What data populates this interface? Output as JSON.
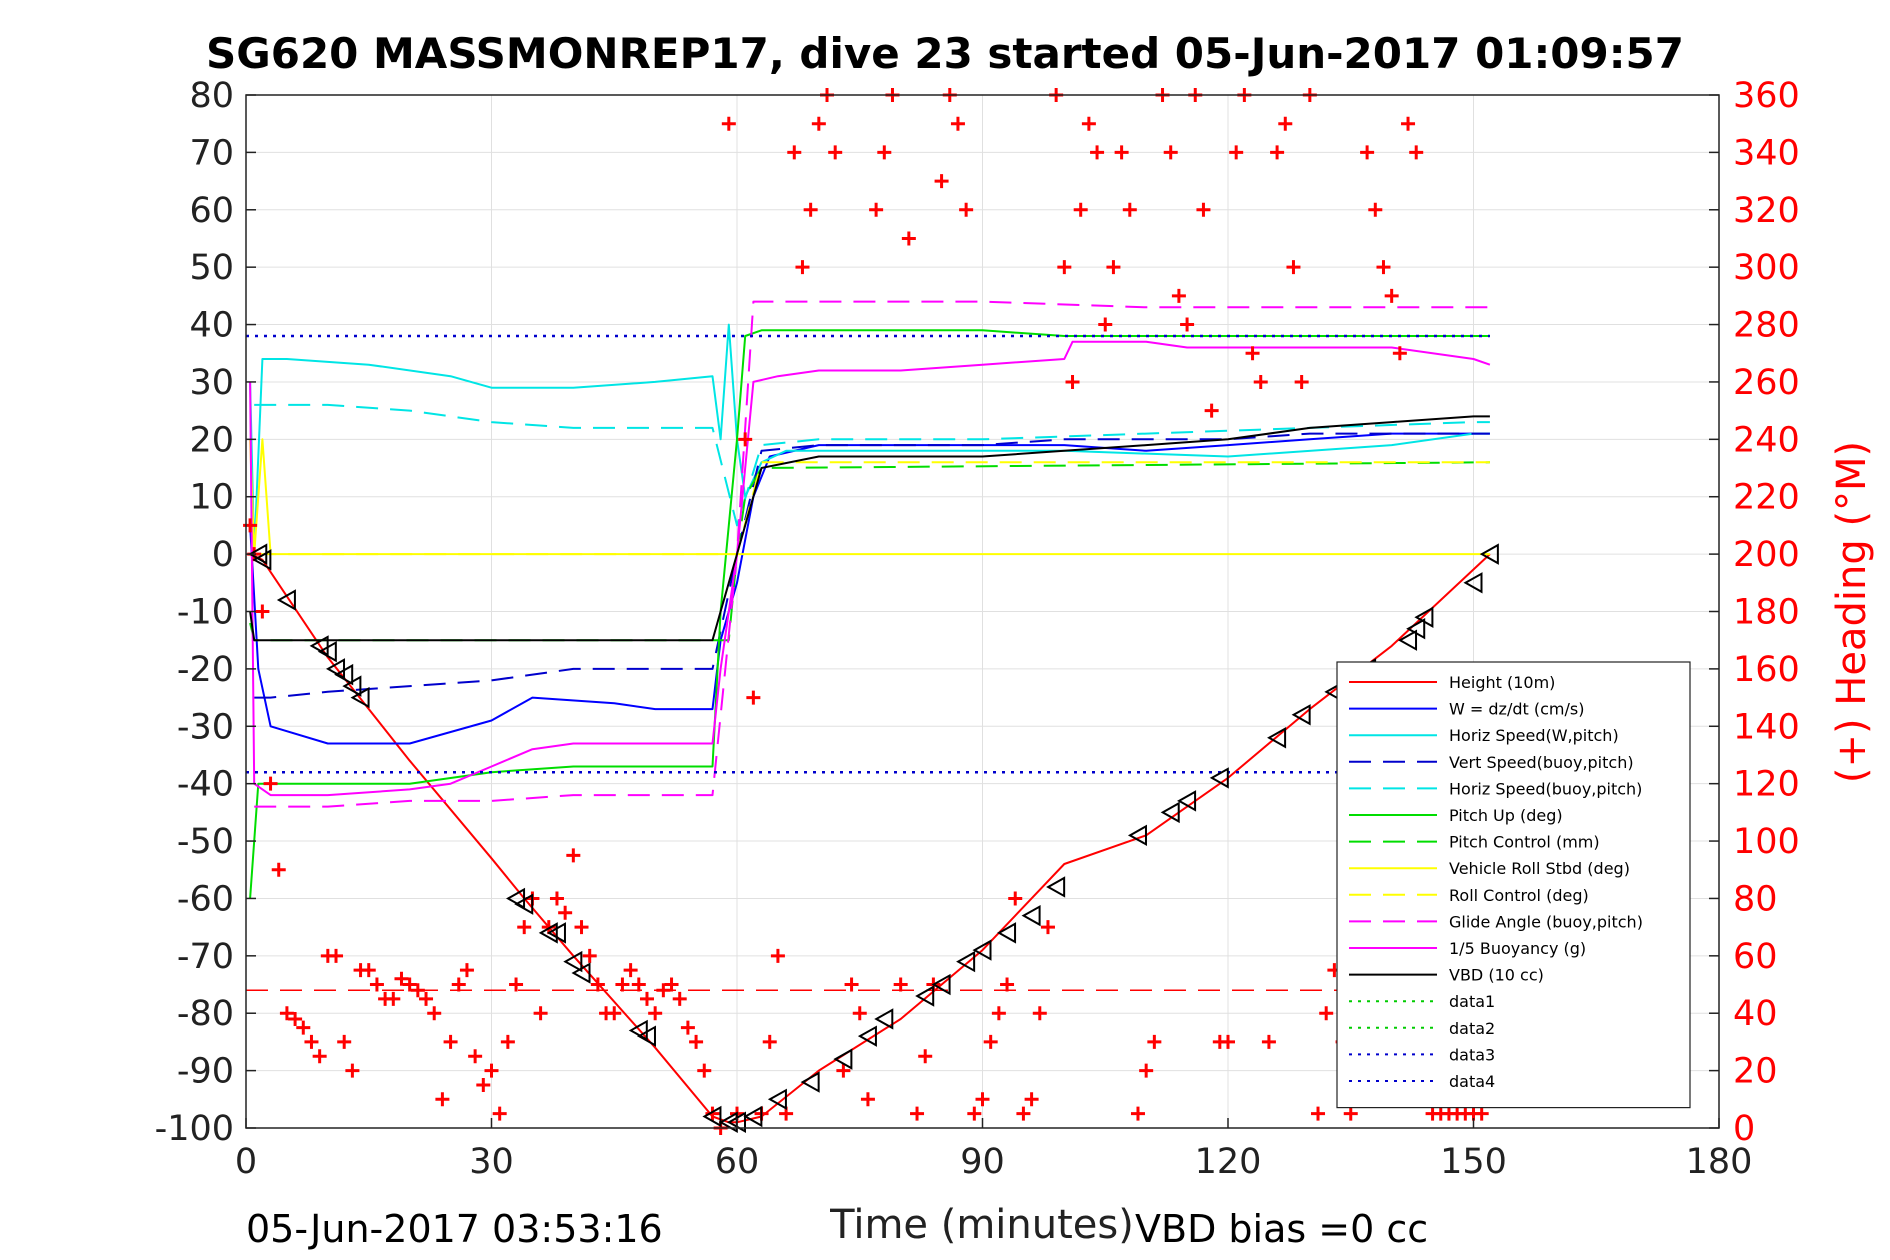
{
  "chart_data": {
    "type": "line",
    "title": "SG620 MASSMONREP17, dive 23 started 05-Jun-2017 01:09:57",
    "xlabel": "Time (minutes)",
    "ylabel_right": "(+) Heading (°M)",
    "xlim": [
      0,
      180
    ],
    "ylim": [
      -100,
      80
    ],
    "ylim_right": [
      0,
      360
    ],
    "xticks": [
      "0",
      "30",
      "60",
      "90",
      "120",
      "150",
      "180"
    ],
    "yticks": [
      "80",
      "70",
      "60",
      "50",
      "40",
      "30",
      "20",
      "10",
      "0",
      "-10",
      "-20",
      "-30",
      "-40",
      "-50",
      "-60",
      "-70",
      "-80",
      "-90",
      "-100"
    ],
    "yticks_right": [
      "360",
      "340",
      "320",
      "300",
      "280",
      "260",
      "240",
      "220",
      "200",
      "180",
      "160",
      "140",
      "120",
      "100",
      "80",
      "60",
      "40",
      "20",
      "0"
    ],
    "grid": true,
    "legend_position": "bottom-right",
    "footer_left": "05-Jun-2017 03:53:16",
    "footer_right": "VBD bias =0 cc",
    "series": [
      {
        "name": "Height (10m)",
        "color": "#ff0000",
        "style": "solid",
        "x": [
          0.5,
          2,
          10,
          20,
          30,
          34,
          40,
          50,
          57,
          59,
          60,
          63,
          70,
          80,
          90,
          100,
          110,
          120,
          130,
          140,
          152
        ],
        "y": [
          0,
          -1,
          -18,
          -36,
          -53,
          -60,
          -70,
          -86,
          -98,
          -99,
          -99,
          -98,
          -90,
          -81,
          -69,
          -54,
          -49,
          -39,
          -27,
          -16,
          0
        ]
      },
      {
        "name": "W = dz/dt (cm/s)",
        "color": "#0000ff",
        "style": "solid",
        "x": [
          0.5,
          1.5,
          3,
          10,
          20,
          30,
          35,
          45,
          50,
          57,
          58,
          60,
          62,
          64,
          70,
          80,
          90,
          100,
          110,
          120,
          130,
          140,
          150,
          152
        ],
        "y": [
          5,
          -20,
          -30,
          -33,
          -33,
          -29,
          -25,
          -26,
          -27,
          -27,
          -15,
          -5,
          10,
          17,
          19,
          19,
          19,
          19,
          18,
          19,
          20,
          21,
          21,
          21
        ]
      },
      {
        "name": "Horiz Speed(W,pitch)",
        "color": "#00e5e5",
        "style": "solid",
        "x": [
          0.5,
          1,
          2,
          5,
          15,
          25,
          30,
          40,
          50,
          57,
          58,
          59,
          60,
          61,
          63,
          66,
          80,
          100,
          120,
          140,
          150,
          152
        ],
        "y": [
          30,
          0,
          34,
          34,
          33,
          31,
          29,
          29,
          30,
          31,
          20,
          40,
          20,
          10,
          16,
          18,
          18,
          18,
          17,
          19,
          21,
          21
        ]
      },
      {
        "name": "Vert Speed(buoy,pitch)",
        "color": "#0000cc",
        "style": "dashed",
        "x": [
          1,
          3,
          10,
          20,
          30,
          40,
          50,
          57,
          60,
          63,
          70,
          80,
          90,
          100,
          110,
          120,
          130,
          140,
          150,
          152
        ],
        "y": [
          -25,
          -25,
          -24,
          -23,
          -22,
          -20,
          -20,
          -20,
          0,
          18,
          19,
          19,
          19,
          20,
          20,
          20,
          21,
          21,
          21,
          21
        ]
      },
      {
        "name": "Horiz Speed(buoy,pitch)",
        "color": "#00e5e5",
        "style": "dashed",
        "x": [
          1,
          3,
          10,
          20,
          30,
          40,
          50,
          57,
          60,
          63,
          70,
          90,
          110,
          130,
          150,
          152
        ],
        "y": [
          26,
          26,
          26,
          25,
          23,
          22,
          22,
          22,
          5,
          19,
          20,
          20,
          21,
          22,
          23,
          23
        ]
      },
      {
        "name": "Pitch Up (deg)",
        "color": "#00dd00",
        "style": "solid",
        "x": [
          0.5,
          1.5,
          3,
          10,
          20,
          30,
          40,
          50,
          57,
          58,
          60,
          61,
          63,
          70,
          80,
          90,
          100,
          110,
          120,
          130,
          140,
          150,
          152
        ],
        "y": [
          -60,
          -40,
          -40,
          -40,
          -40,
          -38,
          -37,
          -37,
          -37,
          -10,
          20,
          38,
          39,
          39,
          39,
          39,
          38,
          38,
          38,
          38,
          38,
          38,
          38
        ]
      },
      {
        "name": "Pitch Control (mm)",
        "color": "#00dd00",
        "style": "dashed",
        "x": [
          0.5,
          1,
          3,
          57,
          59,
          60,
          61,
          63,
          152
        ],
        "y": [
          -12,
          -15,
          -15,
          -15,
          -15,
          0,
          10,
          15,
          16
        ]
      },
      {
        "name": "Vehicle Roll Stbd (deg)",
        "color": "#ffff00",
        "style": "solid",
        "x": [
          0.5,
          1,
          2,
          3,
          5,
          10,
          20,
          30,
          40,
          50,
          57,
          60,
          70,
          80,
          90,
          100,
          110,
          120,
          130,
          140,
          150,
          152
        ],
        "y": [
          20,
          0,
          20,
          0,
          0,
          0,
          0,
          0,
          0,
          0,
          0,
          0,
          0,
          0,
          0,
          0,
          0,
          0,
          0,
          0,
          0,
          0
        ]
      },
      {
        "name": "Roll Control (deg)",
        "color": "#ffff00",
        "style": "dashed",
        "x": [
          1,
          3,
          57,
          60,
          63,
          152
        ],
        "y": [
          0,
          0,
          0,
          0,
          16,
          16
        ]
      },
      {
        "name": "Glide Angle (buoy,pitch)",
        "color": "#ff00ff",
        "style": "dashed",
        "x": [
          1,
          3,
          10,
          20,
          30,
          40,
          50,
          57,
          60,
          62,
          70,
          90,
          110,
          130,
          150,
          152
        ],
        "y": [
          -44,
          -44,
          -44,
          -43,
          -43,
          -42,
          -42,
          -42,
          0,
          44,
          44,
          44,
          43,
          43,
          43,
          43
        ]
      },
      {
        "name": "1/5 Buoyancy (g)",
        "color": "#ff00ff",
        "style": "solid",
        "x": [
          0.5,
          1,
          3,
          10,
          20,
          25,
          30,
          35,
          40,
          50,
          57,
          58,
          60,
          62,
          65,
          70,
          80,
          90,
          100,
          101,
          110,
          115,
          120,
          130,
          140,
          150,
          152
        ],
        "y": [
          30,
          -40,
          -42,
          -42,
          -41,
          -40,
          -37,
          -34,
          -33,
          -33,
          -33,
          -20,
          0,
          30,
          31,
          32,
          32,
          33,
          34,
          37,
          37,
          36,
          36,
          36,
          36,
          34,
          33
        ]
      },
      {
        "name": "VBD (10 cc)",
        "color": "#000000",
        "style": "solid",
        "x": [
          0.5,
          1,
          2,
          10,
          20,
          30,
          40,
          50,
          57,
          58,
          59,
          60,
          61,
          63,
          70,
          80,
          90,
          100,
          110,
          120,
          130,
          140,
          150,
          152
        ],
        "y": [
          -10,
          -15,
          -15,
          -15,
          -15,
          -15,
          -15,
          -15,
          -15,
          -10,
          -5,
          0,
          5,
          15,
          17,
          17,
          17,
          18,
          19,
          20,
          22,
          23,
          24,
          24
        ]
      },
      {
        "name": "data1",
        "color": "#00cc00",
        "style": "dotted",
        "x": [],
        "y": []
      },
      {
        "name": "data2",
        "color": "#00cc00",
        "style": "dotted",
        "x": [],
        "y": []
      },
      {
        "name": "data3",
        "color": "#0000cc",
        "style": "dotted",
        "x": [
          0,
          152
        ],
        "y": [
          38,
          38
        ]
      },
      {
        "name": "data4",
        "color": "#0000cc",
        "style": "dotted",
        "x": [
          0,
          152
        ],
        "y": [
          -38,
          -38
        ]
      }
    ],
    "heading_ref_line": {
      "axis": "right",
      "value": 48,
      "color": "#ff0000",
      "style": "dashed",
      "x": [
        0,
        152
      ]
    },
    "heading_markers": {
      "axis": "right",
      "marker": "+",
      "color": "#ff0000",
      "x": [
        0.5,
        1,
        2,
        3,
        4,
        5,
        6,
        7,
        8,
        9,
        10,
        11,
        12,
        13,
        14,
        15,
        16,
        17,
        18,
        19,
        20,
        21,
        22,
        23,
        24,
        25,
        26,
        27,
        28,
        29,
        30,
        31,
        32,
        33,
        34,
        35,
        36,
        37,
        38,
        39,
        40,
        41,
        42,
        43,
        44,
        45,
        46,
        47,
        48,
        49,
        50,
        51,
        52,
        53,
        54,
        55,
        56,
        57,
        58,
        59,
        60,
        61,
        62,
        63,
        64,
        65,
        66,
        67,
        68,
        69,
        70,
        71,
        72,
        73,
        74,
        75,
        76,
        77,
        78,
        79,
        80,
        81,
        82,
        83,
        84,
        85,
        86,
        87,
        88,
        89,
        90,
        91,
        92,
        93,
        94,
        95,
        96,
        97,
        98,
        99,
        100,
        101,
        102,
        103,
        104,
        105,
        106,
        107,
        108,
        109,
        110,
        111,
        112,
        113,
        114,
        115,
        116,
        117,
        118,
        119,
        120,
        121,
        122,
        123,
        124,
        125,
        126,
        127,
        128,
        129,
        130,
        131,
        132,
        133,
        134,
        135,
        136,
        137,
        138,
        139,
        140,
        141,
        142,
        143,
        144,
        145,
        146,
        147,
        148,
        149,
        150,
        151
      ],
      "y": [
        210,
        200,
        180,
        120,
        90,
        40,
        38,
        35,
        30,
        25,
        60,
        60,
        30,
        20,
        55,
        55,
        50,
        45,
        45,
        52,
        50,
        48,
        45,
        40,
        10,
        30,
        50,
        55,
        25,
        15,
        20,
        5,
        30,
        50,
        70,
        80,
        40,
        70,
        80,
        75,
        95,
        70,
        60,
        50,
        40,
        40,
        50,
        55,
        50,
        45,
        40,
        48,
        50,
        45,
        35,
        30,
        20,
        5,
        0,
        350,
        5,
        240,
        150,
        5,
        30,
        60,
        5,
        340,
        300,
        320,
        350,
        360,
        340,
        20,
        50,
        40,
        10,
        320,
        340,
        360,
        50,
        310,
        5,
        25,
        50,
        330,
        360,
        350,
        320,
        5,
        10,
        30,
        40,
        50,
        80,
        5,
        10,
        40,
        70,
        360,
        300,
        260,
        320,
        350,
        340,
        280,
        300,
        340,
        320,
        5,
        20,
        30,
        360,
        340,
        290,
        280,
        360,
        320,
        250,
        30,
        30,
        340,
        360,
        270,
        260,
        30,
        340,
        350,
        300,
        260,
        360,
        5,
        40,
        55,
        30,
        5,
        50,
        340,
        320,
        300,
        290,
        270,
        350,
        340,
        10,
        5,
        5,
        5,
        5,
        5,
        5,
        5
      ]
    },
    "depth_triangles": {
      "marker": "triangle-left",
      "color": "#000000",
      "x": [
        1.5,
        2,
        5,
        9,
        10,
        11,
        12,
        13,
        14,
        33,
        34,
        37,
        38,
        40,
        41,
        48,
        49,
        57,
        59,
        60,
        62,
        65,
        69,
        73,
        76,
        78,
        83,
        85,
        88,
        90,
        93,
        96,
        99,
        109,
        113,
        115,
        119,
        126,
        129,
        133,
        137,
        142,
        143,
        144,
        150,
        152
      ],
      "y": [
        0,
        -1,
        -8,
        -16,
        -17,
        -20,
        -21,
        -23,
        -25,
        -60,
        -61,
        -66,
        -66,
        -71,
        -73,
        -83,
        -84,
        -98,
        -99,
        -99,
        -98,
        -95,
        -92,
        -88,
        -84,
        -81,
        -77,
        -75,
        -71,
        -69,
        -66,
        -63,
        -58,
        -49,
        -45,
        -43,
        -39,
        -32,
        -28,
        -24,
        -20,
        -15,
        -13,
        -11,
        -5,
        0
      ]
    }
  }
}
